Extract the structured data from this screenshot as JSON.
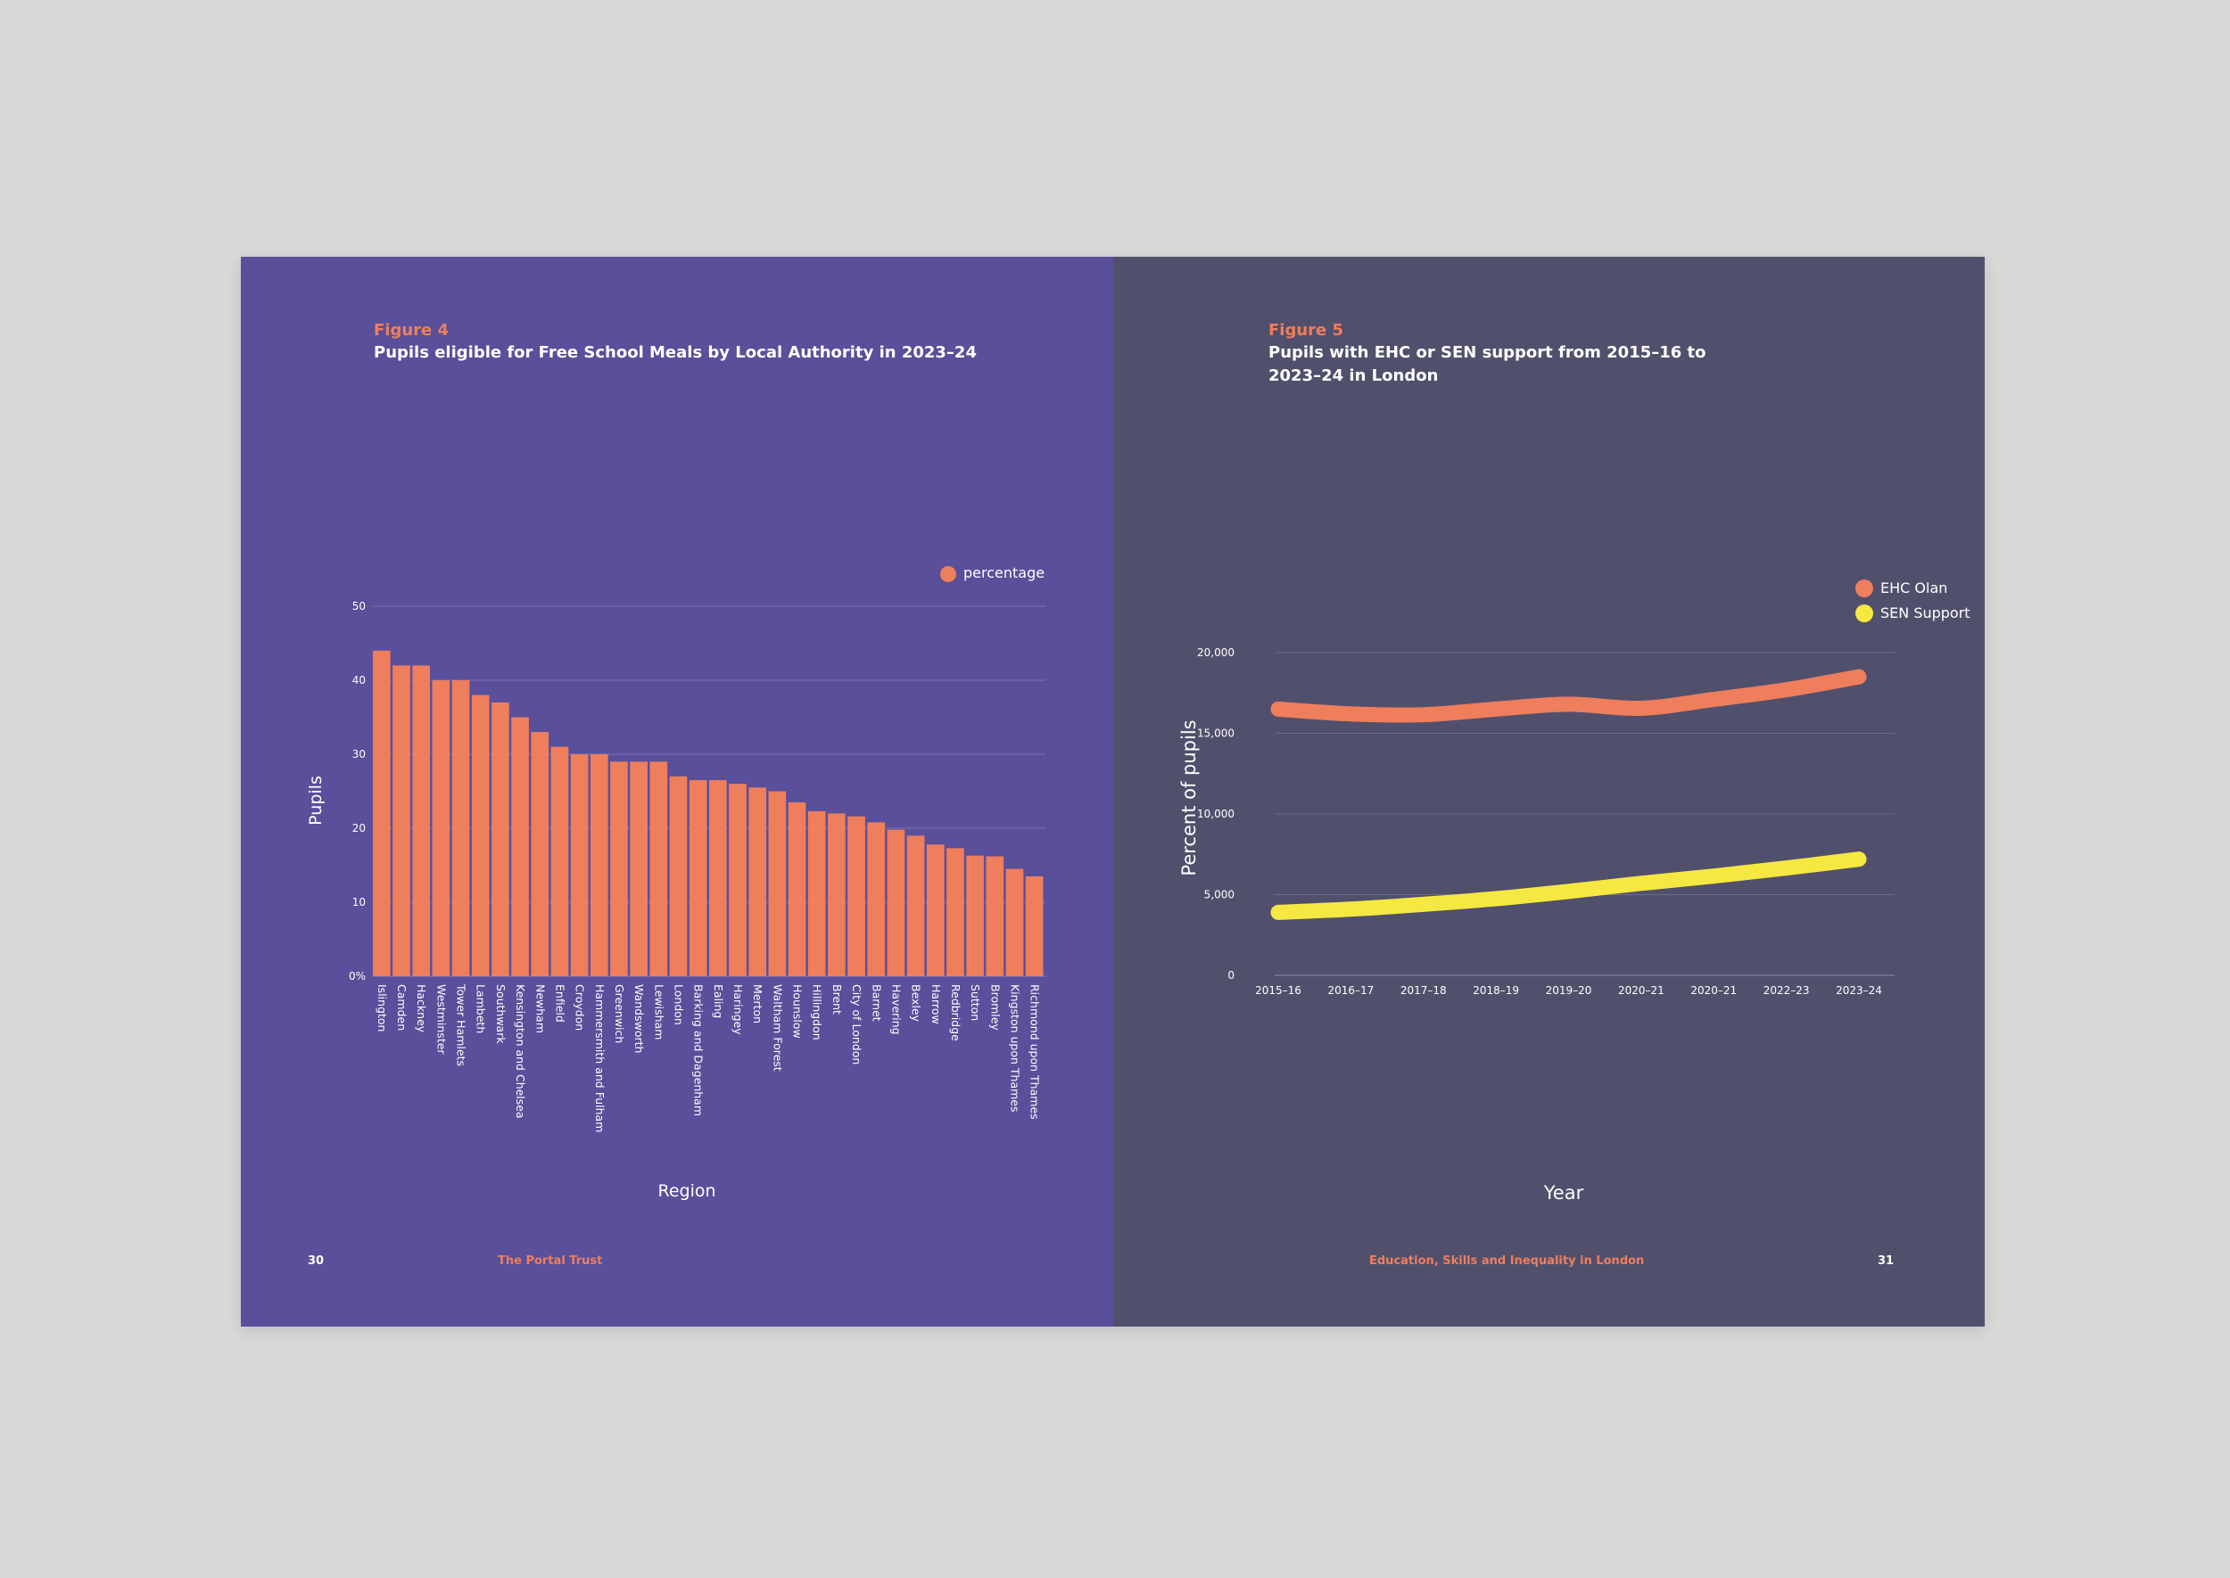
{
  "colors": {
    "left_bg": "#594f9a",
    "right_bg": "#51506c",
    "accent": "#ef7e5c",
    "sen": "#f5e840",
    "text": "#ffffff",
    "grid": "#7a74b4",
    "grid_right": "#6c6b88"
  },
  "left": {
    "figure_label": "Figure 4",
    "title": "Pupils eligible for Free School Meals by Local Authority in 2023–24",
    "page_number": "30",
    "footer_text": "The Portal Trust"
  },
  "right": {
    "figure_label": "Figure 5",
    "title_line1": "Pupils with EHC or SEN support from 2015–16 to",
    "title_line2": "2023–24 in London",
    "page_number": "31",
    "footer_text": "Education, Skills and Inequality in London"
  },
  "chart_data": [
    {
      "type": "bar",
      "xlabel": "Region",
      "ylabel": "Pupils",
      "ylim": [
        0,
        50
      ],
      "yticks": [
        "0%",
        "10",
        "20",
        "30",
        "40",
        "50"
      ],
      "legend": [
        "percentage"
      ],
      "legend_position": "top-right",
      "grid": true,
      "categories": [
        "Islington",
        "Camden",
        "Hackney",
        "Westminster",
        "Tower Hamlets",
        "Lambeth",
        "Southwark",
        "Kensington and Chelsea",
        "Newham",
        "Enfield",
        "Croydon",
        "Hammersmith and Fulham",
        "Greenwich",
        "Wandsworth",
        "Lewisham",
        "London",
        "Barking and Dagenham",
        "Ealing",
        "Haringey",
        "Merton",
        "Waltham Forest",
        "Hounslow",
        "Hillingdon",
        "Brent",
        "City of London",
        "Barnet",
        "Havering",
        "Bexley",
        "Harrow",
        "Redbridge",
        "Sutton",
        "Bromley",
        "Kingston upon Thames",
        "Richmond upon Thames"
      ],
      "values": [
        44,
        42,
        42,
        40,
        40,
        38,
        37,
        35,
        33,
        31,
        30,
        30,
        29,
        29,
        29,
        27,
        26.5,
        26.5,
        26,
        25.5,
        25,
        23.5,
        22.3,
        22,
        21.6,
        20.8,
        19.8,
        19,
        17.8,
        17.3,
        16.3,
        16.2,
        14.5,
        13.5
      ]
    },
    {
      "type": "line",
      "xlabel": "Year",
      "ylabel": "Percent of pupils",
      "ylim": [
        0,
        20000
      ],
      "yticks": [
        "0",
        "5,000",
        "10,000",
        "15,000",
        "20,000"
      ],
      "categories": [
        "2015–16",
        "2016–17",
        "2017–18",
        "2018–19",
        "2019–20",
        "2020–21",
        "2020–21",
        "2022–23",
        "2023–24"
      ],
      "legend_position": "top-right",
      "grid": true,
      "series": [
        {
          "name": "EHC Olan",
          "color": "#ef7e5c",
          "values": [
            16500,
            16200,
            16150,
            16500,
            16800,
            16550,
            17100,
            17700,
            18500
          ]
        },
        {
          "name": "SEN Support",
          "color": "#f5e840",
          "values": [
            3900,
            4100,
            4400,
            4750,
            5200,
            5700,
            6150,
            6650,
            7200
          ]
        }
      ]
    }
  ]
}
